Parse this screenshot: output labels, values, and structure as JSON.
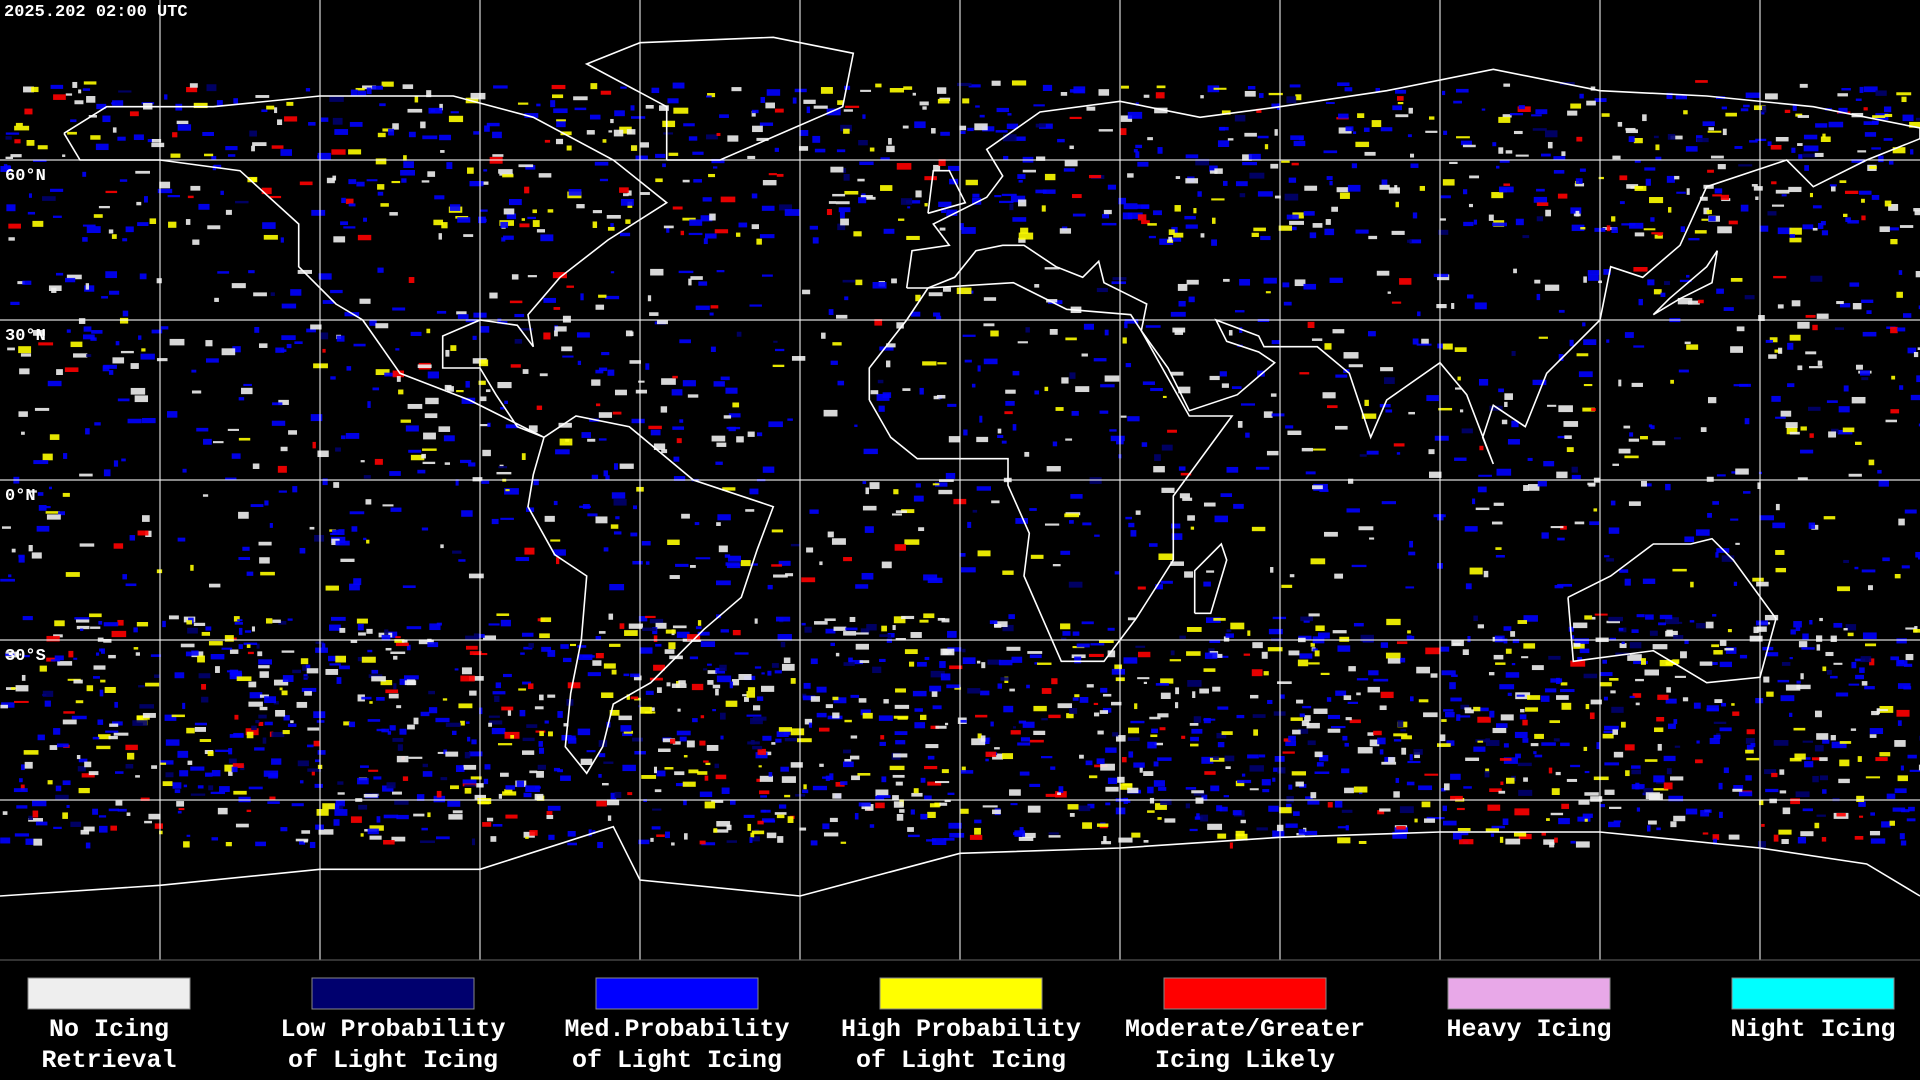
{
  "timestamp": "2025.202 02:00 UTC",
  "latitude_labels": [
    "60°N",
    "30°N",
    "0°N",
    "30°S"
  ],
  "legend": [
    {
      "color": "#eeeeee",
      "label": [
        "No Icing",
        "Retrieval"
      ]
    },
    {
      "color": "#00006e",
      "label": [
        "Low Probability",
        "of Light Icing"
      ]
    },
    {
      "color": "#0000ff",
      "label": [
        "Med.Probability",
        "of Light Icing"
      ]
    },
    {
      "color": "#ffff00",
      "label": [
        "High Probability",
        "of Light Icing"
      ]
    },
    {
      "color": "#ff0000",
      "label": [
        "Moderate/Greater",
        "Icing Likely"
      ]
    },
    {
      "color": "#e8a8e8",
      "label": [
        "Heavy Icing"
      ]
    },
    {
      "color": "#00ffff",
      "label": [
        "Night Icing"
      ]
    }
  ]
}
